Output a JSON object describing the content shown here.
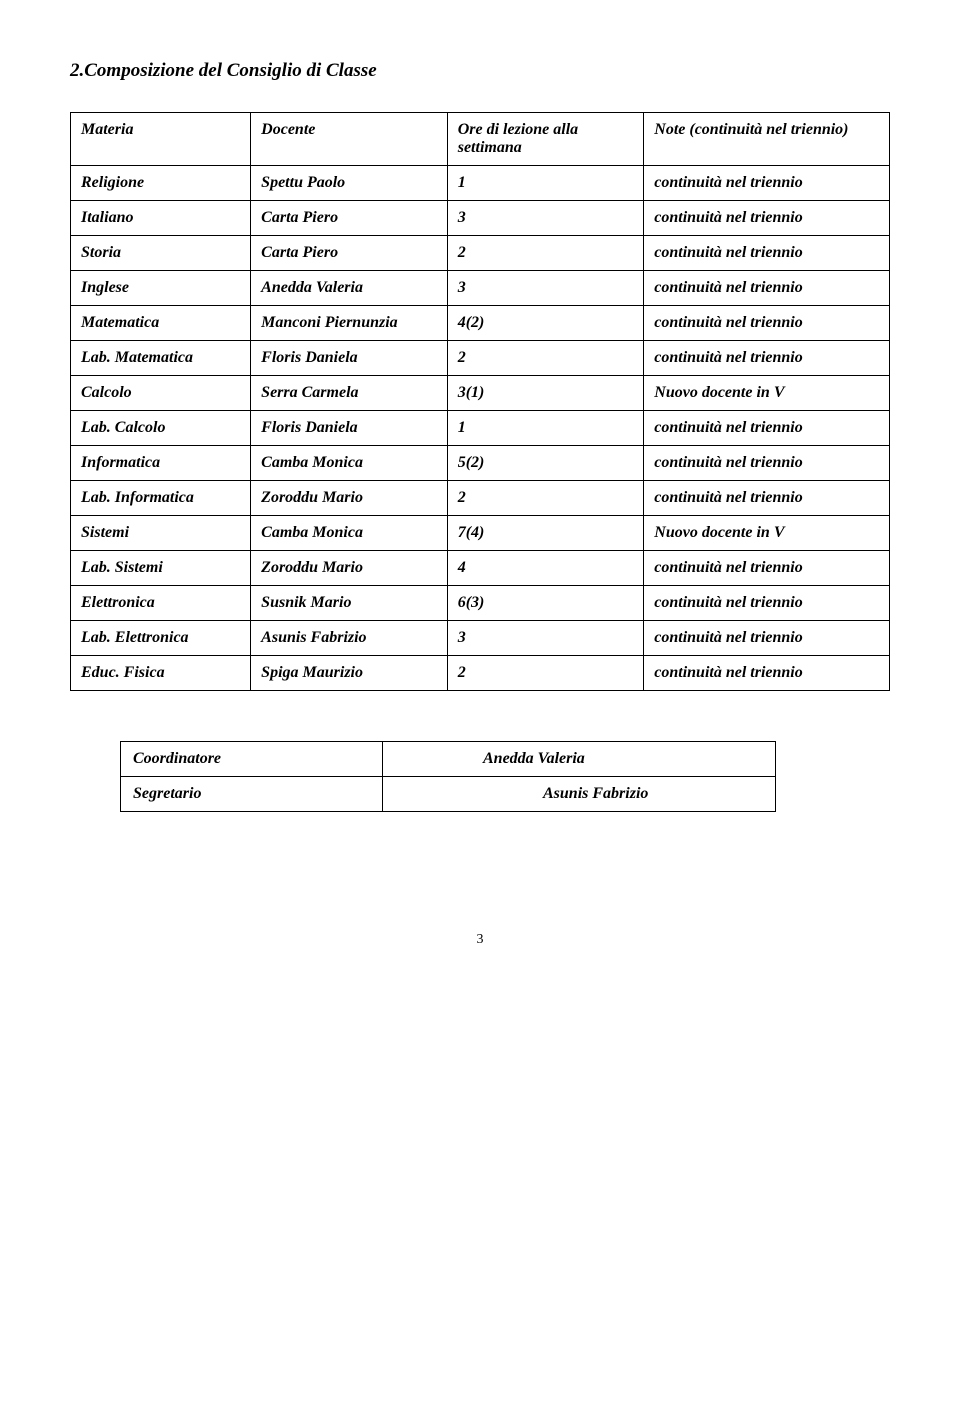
{
  "section_title": "2.Composizione del Consiglio di Classe",
  "table": {
    "headers": {
      "materia": "Materia",
      "docente": "Docente",
      "ore": "Ore di lezione alla settimana",
      "note": "Note\n(continuità nel triennio)"
    },
    "rows": [
      {
        "materia": "Religione",
        "docente": "Spettu Paolo",
        "ore": "1",
        "note": "continuità nel triennio"
      },
      {
        "materia": "Italiano",
        "docente": "Carta Piero",
        "ore": "3",
        "note": "continuità nel triennio"
      },
      {
        "materia": "Storia",
        "docente": "Carta Piero",
        "ore": "2",
        "note": "continuità nel triennio"
      },
      {
        "materia": "Inglese",
        "docente": "Anedda Valeria",
        "ore": "3",
        "note": "continuità nel triennio"
      },
      {
        "materia": "Matematica",
        "docente": "Manconi Piernunzia",
        "ore": "4(2)",
        "note": "continuità nel triennio"
      },
      {
        "materia": "Lab. Matematica",
        "docente": "Floris Daniela",
        "ore": "2",
        "note": "continuità nel triennio"
      },
      {
        "materia": "Calcolo",
        "docente": "Serra Carmela",
        "ore": "3(1)",
        "note": "Nuovo docente in V"
      },
      {
        "materia": "Lab. Calcolo",
        "docente": "Floris Daniela",
        "ore": "1",
        "note": "continuità nel triennio"
      },
      {
        "materia": "Informatica",
        "docente": "Camba Monica",
        "ore": "5(2)",
        "note": "continuità nel triennio"
      },
      {
        "materia": "Lab. Informatica",
        "docente": "Zoroddu Mario",
        "ore": "2",
        "note": " continuità nel triennio"
      },
      {
        "materia": "Sistemi",
        "docente": "Camba Monica",
        "ore": "7(4)",
        "note": "Nuovo docente in V"
      },
      {
        "materia": "Lab. Sistemi",
        "docente": "Zoroddu Mario",
        "ore": "4",
        "note": " continuità nel triennio"
      },
      {
        "materia": "Elettronica",
        "docente": "Susnik Mario",
        "ore": "6(3)",
        "note": "continuità nel triennio"
      },
      {
        "materia": "Lab. Elettronica",
        "docente": "Asunis Fabrizio",
        "ore": "3",
        "note": "continuità nel triennio"
      },
      {
        "materia": "Educ. Fisica",
        "docente": "Spiga Maurizio",
        "ore": "2",
        "note": "continuità nel triennio"
      }
    ]
  },
  "coord": {
    "coordinatore_label": "Coordinatore",
    "coordinatore_value": "Anedda Valeria",
    "segretario_label": "Segretario",
    "segretario_value": "Asunis Fabrizio"
  },
  "page_number": "3",
  "col_widths": {
    "materia": "22%",
    "docente": "24%",
    "ore": "24%",
    "note": "30%"
  }
}
